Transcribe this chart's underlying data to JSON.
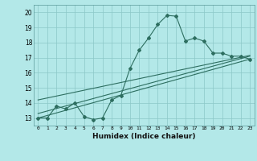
{
  "title": "",
  "xlabel": "Humidex (Indice chaleur)",
  "background_color": "#b3e8e8",
  "plot_bg_color": "#b3e8e8",
  "line_color": "#2d6e60",
  "xlim": [
    -0.5,
    23.5
  ],
  "ylim": [
    12.5,
    20.5
  ],
  "xticks": [
    0,
    1,
    2,
    3,
    4,
    5,
    6,
    7,
    8,
    9,
    10,
    11,
    12,
    13,
    14,
    15,
    16,
    17,
    18,
    19,
    20,
    21,
    22,
    23
  ],
  "yticks": [
    13,
    14,
    15,
    16,
    17,
    18,
    19,
    20
  ],
  "grid_color": "#8cc8c8",
  "series1_x": [
    0,
    1,
    2,
    3,
    4,
    5,
    6,
    7,
    8,
    9,
    10,
    11,
    12,
    13,
    14,
    15,
    16,
    17,
    18,
    19,
    20,
    21,
    22,
    23
  ],
  "series1_y": [
    13.0,
    13.0,
    13.8,
    13.6,
    14.0,
    13.1,
    12.9,
    13.0,
    14.2,
    14.5,
    16.3,
    17.5,
    18.3,
    19.2,
    19.8,
    19.75,
    18.1,
    18.3,
    18.1,
    17.3,
    17.3,
    17.1,
    17.1,
    16.9
  ],
  "trend1_x": [
    0,
    23
  ],
  "trend1_y": [
    13.0,
    16.9
  ],
  "trend2_x": [
    0,
    23
  ],
  "trend2_y": [
    13.3,
    17.1
  ],
  "trend3_x": [
    0,
    23
  ],
  "trend3_y": [
    14.2,
    17.15
  ]
}
